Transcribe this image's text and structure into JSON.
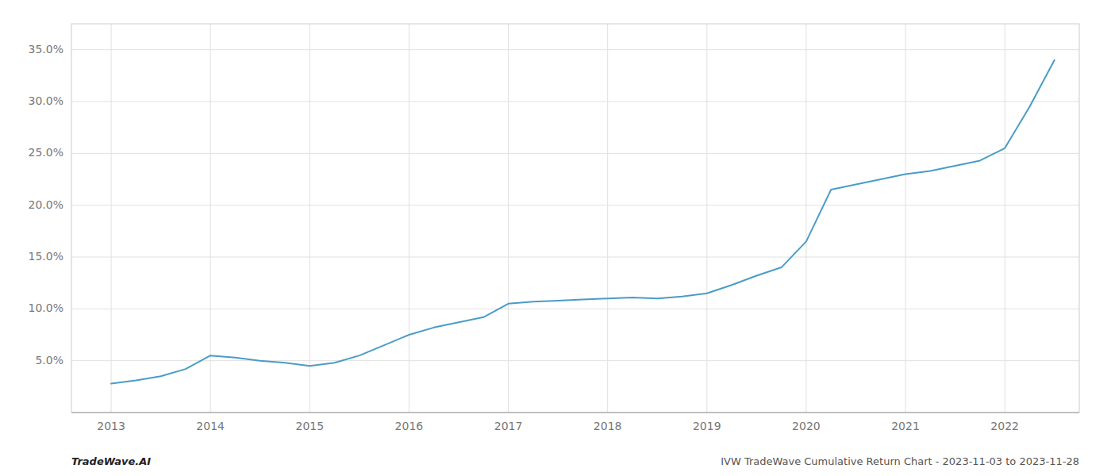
{
  "chart_data": {
    "type": "line",
    "x": [
      2013.0,
      2013.25,
      2013.5,
      2013.75,
      2014.0,
      2014.25,
      2014.5,
      2014.75,
      2015.0,
      2015.25,
      2015.5,
      2015.75,
      2016.0,
      2016.25,
      2016.5,
      2016.75,
      2017.0,
      2017.25,
      2017.5,
      2017.75,
      2018.0,
      2018.25,
      2018.5,
      2018.75,
      2019.0,
      2019.25,
      2019.5,
      2019.75,
      2020.0,
      2020.25,
      2020.5,
      2020.75,
      2021.0,
      2021.25,
      2021.5,
      2021.75,
      2022.0,
      2022.25,
      2022.5
    ],
    "values": [
      2.8,
      3.1,
      3.5,
      4.2,
      5.5,
      5.3,
      5.0,
      4.8,
      4.5,
      4.8,
      5.5,
      6.5,
      7.5,
      8.2,
      8.7,
      9.2,
      10.5,
      10.7,
      10.8,
      10.9,
      11.0,
      11.1,
      11.0,
      11.2,
      11.5,
      12.3,
      13.2,
      14.0,
      16.5,
      21.5,
      22.0,
      22.5,
      23.0,
      23.3,
      23.8,
      24.3,
      25.5,
      29.5,
      34.0
    ],
    "color": "#4a9cc7",
    "xlim": [
      2012.6,
      2022.75
    ],
    "xticks": [
      2013,
      2014,
      2015,
      2016,
      2017,
      2018,
      2019,
      2020,
      2021,
      2022
    ],
    "ylim": [
      0.0,
      37.5
    ],
    "yticks": [
      {
        "value": 5.0,
        "label": "5.0%"
      },
      {
        "value": 10.0,
        "label": "10.0%"
      },
      {
        "value": 15.0,
        "label": "15.0%"
      },
      {
        "value": 20.0,
        "label": "20.0%"
      },
      {
        "value": 25.0,
        "label": "25.0%"
      },
      {
        "value": 30.0,
        "label": "30.0%"
      },
      {
        "value": 35.0,
        "label": "35.0%"
      }
    ],
    "grid": true,
    "annotations": [
      "TradeWave.AI",
      "IVW TradeWave Cumulative Return Chart - 2023-11-03 to 2023-11-28"
    ]
  }
}
